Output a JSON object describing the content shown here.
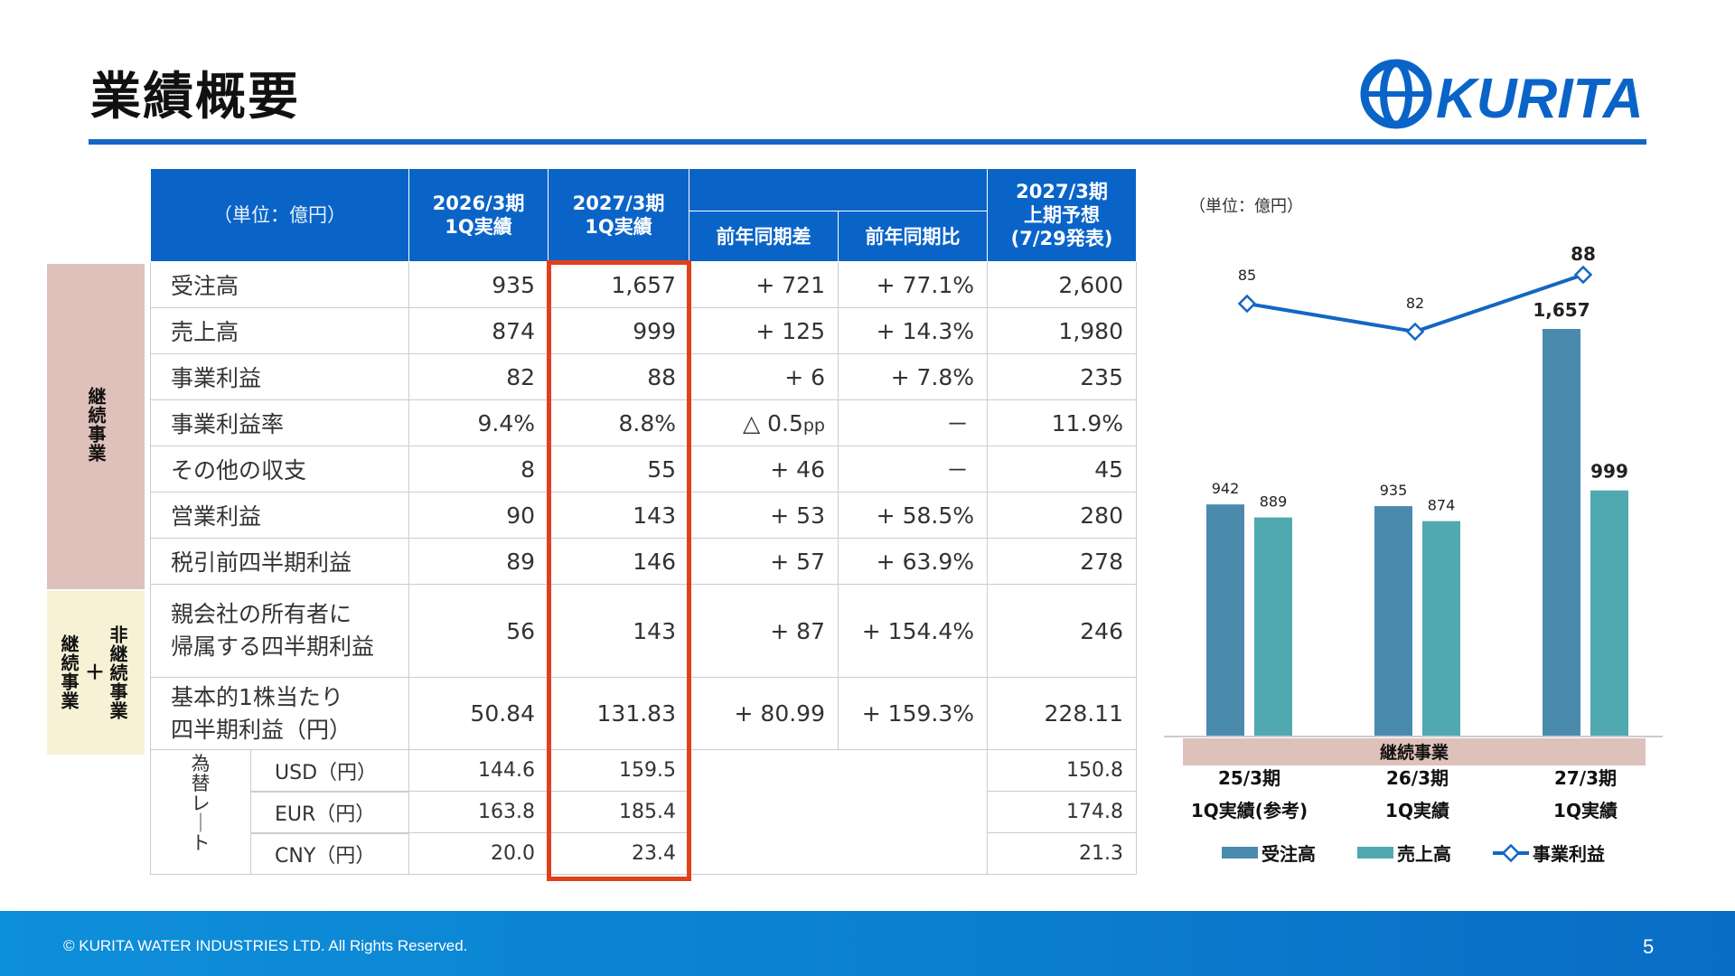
{
  "title": "業績概要",
  "logo_text": "KURITA",
  "table": {
    "unit": "（単位：億円）",
    "col_fy2026": "2026/3期\n1Q実績",
    "col_fy2027": "2027/3期\n1Q実績",
    "col_diff": "前年同期差",
    "col_ratio": "前年同期比",
    "col_forecast": "2027/3期\n上期予想\n(7/29発表)",
    "rows": [
      {
        "label": "受注高",
        "a": "935",
        "b": "1,657",
        "diff": "+ 721",
        "ratio": "+ 77.1%",
        "fc": "2,600"
      },
      {
        "label": "売上高",
        "a": "874",
        "b": "999",
        "diff": "+ 125",
        "ratio": "+ 14.3%",
        "fc": "1,980"
      },
      {
        "label": "事業利益",
        "a": "82",
        "b": "88",
        "diff": "+ 6",
        "ratio": "+ 7.8%",
        "fc": "235"
      },
      {
        "label": "事業利益率",
        "a": "9.4%",
        "b": "8.8%",
        "diff": "△ 0.5",
        "diff_unit": "pp",
        "ratio": "－",
        "fc": "11.9%"
      },
      {
        "label": "その他の収支",
        "a": "8",
        "b": "55",
        "diff": "+ 46",
        "ratio": "－",
        "fc": "45"
      },
      {
        "label": "営業利益",
        "a": "90",
        "b": "143",
        "diff": "+ 53",
        "ratio": "+ 58.5%",
        "fc": "280"
      },
      {
        "label": "税引前四半期利益",
        "a": "89",
        "b": "146",
        "diff": "+ 57",
        "ratio": "+ 63.9%",
        "fc": "278"
      },
      {
        "label": "親会社の所有者に\n帰属する四半期利益",
        "a": "56",
        "b": "143",
        "diff": "+ 87",
        "ratio": "+ 154.4%",
        "fc": "246"
      },
      {
        "label": "基本的1株当たり\n四半期利益（円）",
        "a": "50.84",
        "b": "131.83",
        "diff": "+ 80.99",
        "ratio": "+ 159.3%",
        "fc": "228.11"
      }
    ],
    "fx_label": "為\n替\nレ\n｜\nト",
    "fx_rows": [
      {
        "label": "USD（円）",
        "a": "144.6",
        "b": "159.5",
        "fc": "150.8"
      },
      {
        "label": "EUR（円）",
        "a": "163.8",
        "b": "185.4",
        "fc": "174.8"
      },
      {
        "label": "CNY（円）",
        "a": "20.0",
        "b": "23.4",
        "fc": "21.3"
      }
    ]
  },
  "side_labels": {
    "continuing": "継続事業",
    "noncont_left": "継続事業",
    "noncont_plus": "＋",
    "noncont_right": "非継続事業"
  },
  "chart_data": {
    "type": "bar",
    "unit_note": "（単位：億円）",
    "band_label": "継続事業",
    "categories": [
      "25/3期\n1Q実績(参考)",
      "26/3期\n1Q実績",
      "27/3期\n1Q実績"
    ],
    "series": [
      {
        "name": "受注高",
        "type": "bar",
        "values": [
          942,
          935,
          1657
        ],
        "color": "#4a8aad"
      },
      {
        "name": "売上高",
        "type": "bar",
        "values": [
          889,
          874,
          999
        ],
        "color": "#50a9b0"
      },
      {
        "name": "事業利益",
        "type": "line",
        "values": [
          85,
          82,
          88
        ],
        "color": "#1466c2"
      }
    ],
    "bar_labels": [
      [
        "942",
        "889"
      ],
      [
        "935",
        "874"
      ],
      [
        "1,657",
        "999"
      ]
    ],
    "line_labels": [
      "85",
      "82",
      "88"
    ],
    "bold_last": true
  },
  "footer": {
    "copyright": "© KURITA WATER INDUSTRIES LTD. All Rights Reserved.",
    "page": "5"
  }
}
